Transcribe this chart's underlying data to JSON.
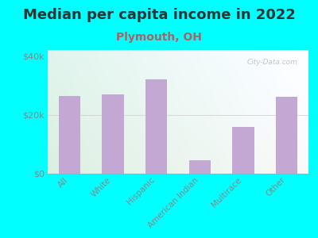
{
  "title": "Median per capita income in 2022",
  "subtitle": "Plymouth, OH",
  "categories": [
    "All",
    "White",
    "Hispanic",
    "American Indian",
    "Multirace",
    "Other"
  ],
  "values": [
    26500,
    27000,
    32000,
    4500,
    16000,
    26000
  ],
  "bar_color": "#c4a8d4",
  "background_outer": "#00FFFF",
  "ylim": [
    0,
    42000
  ],
  "ytick_labels": [
    "$0",
    "$20k",
    "$40k"
  ],
  "ytick_values": [
    0,
    20000,
    40000
  ],
  "title_fontsize": 13,
  "subtitle_fontsize": 10,
  "title_color": "#333333",
  "subtitle_color": "#b06060",
  "tick_color": "#888888",
  "watermark": "City-Data.com",
  "bg_colors_left": [
    "#d4eec4",
    "#e8f4d8"
  ],
  "bg_colors_right": [
    "#f0f0e8",
    "#fafaf5"
  ]
}
